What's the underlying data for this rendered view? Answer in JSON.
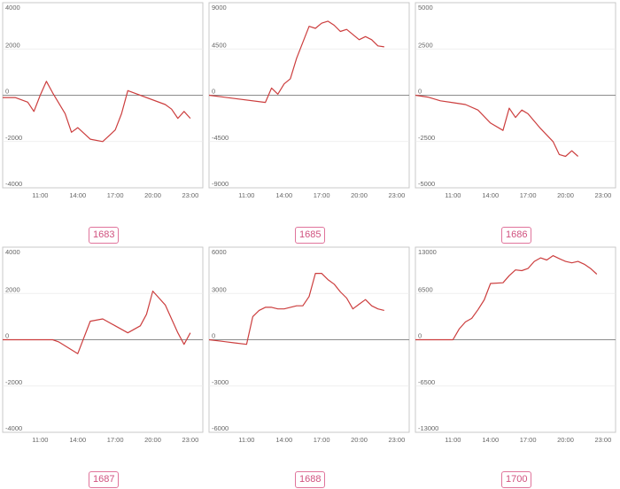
{
  "colors": {
    "line": "#cc3e3e",
    "grid": "#ebebeb",
    "zero": "#8c8c8c",
    "frame": "#c9c9c9",
    "badge": "#d0527f"
  },
  "chart_data": [
    {
      "type": "line",
      "badge": "1683",
      "yticks": [
        "4000",
        "2000",
        "0",
        "-2000",
        "-4000"
      ],
      "ylim": [
        -4000,
        4000
      ],
      "xticks": [
        "11:00",
        "14:00",
        "17:00",
        "20:00",
        "23:00"
      ],
      "x": [
        "08:00",
        "09:00",
        "10:00",
        "10:30",
        "11:00",
        "11:30",
        "12:00",
        "13:00",
        "13:30",
        "14:00",
        "15:00",
        "16:00",
        "17:00",
        "17:30",
        "18:00",
        "21:00",
        "21:30",
        "22:00",
        "22:30",
        "23:00"
      ],
      "y": [
        -100,
        -100,
        -300,
        -700,
        0,
        600,
        100,
        -800,
        -1600,
        -1400,
        -1900,
        -2000,
        -1500,
        -800,
        200,
        -400,
        -600,
        -1000,
        -700,
        -1000
      ]
    },
    {
      "type": "line",
      "badge": "1685",
      "yticks": [
        "9000",
        "4500",
        "0",
        "-4500",
        "-9000"
      ],
      "ylim": [
        -9000,
        9000
      ],
      "xticks": [
        "11:00",
        "14:00",
        "17:00",
        "20:00",
        "23:00"
      ],
      "x": [
        "08:00",
        "12:30",
        "13:00",
        "13:30",
        "14:00",
        "14:30",
        "15:00",
        "16:00",
        "16:30",
        "17:00",
        "17:30",
        "18:00",
        "18:30",
        "19:00",
        "20:00",
        "20:30",
        "21:00",
        "21:30",
        "22:00"
      ],
      "y": [
        0,
        -700,
        700,
        100,
        1100,
        1600,
        3600,
        6700,
        6500,
        7000,
        7200,
        6800,
        6200,
        6400,
        5400,
        5700,
        5400,
        4800,
        4700
      ]
    },
    {
      "type": "line",
      "badge": "1686",
      "yticks": [
        "5000",
        "2500",
        "0",
        "-2500",
        "-5000"
      ],
      "ylim": [
        -5000,
        5000
      ],
      "xticks": [
        "11:00",
        "14:00",
        "17:00",
        "20:00",
        "23:00"
      ],
      "x": [
        "08:00",
        "09:00",
        "10:00",
        "11:00",
        "12:00",
        "13:00",
        "14:00",
        "15:00",
        "15:30",
        "16:00",
        "16:30",
        "17:00",
        "18:00",
        "19:00",
        "19:30",
        "20:00",
        "20:30",
        "21:00"
      ],
      "y": [
        0,
        -100,
        -300,
        -400,
        -500,
        -800,
        -1500,
        -1900,
        -700,
        -1200,
        -800,
        -1000,
        -1800,
        -2500,
        -3200,
        -3300,
        -3000,
        -3300
      ]
    },
    {
      "type": "line",
      "badge": "1687",
      "yticks": [
        "4000",
        "2000",
        "0",
        "-2000",
        "-4000"
      ],
      "ylim": [
        -4000,
        4000
      ],
      "xticks": [
        "11:00",
        "14:00",
        "17:00",
        "20:00",
        "23:00"
      ],
      "x": [
        "08:00",
        "10:00",
        "11:00",
        "11:30",
        "12:00",
        "12:30",
        "14:00",
        "15:00",
        "16:00",
        "17:00",
        "18:00",
        "19:00",
        "19:30",
        "20:00",
        "20:30",
        "21:00",
        "21:30",
        "22:00",
        "22:30",
        "23:00"
      ],
      "y": [
        0,
        0,
        0,
        0,
        0,
        -100,
        -600,
        800,
        900,
        600,
        300,
        600,
        1100,
        2100,
        1800,
        1500,
        900,
        300,
        -200,
        300
      ]
    },
    {
      "type": "line",
      "badge": "1688",
      "yticks": [
        "6000",
        "3000",
        "0",
        "-3000",
        "-6000"
      ],
      "ylim": [
        -6000,
        6000
      ],
      "xticks": [
        "11:00",
        "14:00",
        "17:00",
        "20:00",
        "23:00"
      ],
      "x": [
        "08:00",
        "09:00",
        "10:00",
        "11:00",
        "11:30",
        "12:00",
        "12:30",
        "13:00",
        "13:30",
        "14:00",
        "15:00",
        "15:30",
        "16:00",
        "16:30",
        "17:00",
        "17:30",
        "18:00",
        "18:30",
        "19:00",
        "19:30",
        "20:00",
        "20:30",
        "21:00",
        "21:30",
        "22:00"
      ],
      "y": [
        0,
        -100,
        -200,
        -300,
        1500,
        1900,
        2100,
        2100,
        2000,
        2000,
        2200,
        2200,
        2800,
        4300,
        4300,
        3900,
        3600,
        3100,
        2700,
        2000,
        2300,
        2600,
        2200,
        2000,
        1900
      ]
    },
    {
      "type": "line",
      "badge": "1700",
      "yticks": [
        "13000",
        "6500",
        "0",
        "-6500",
        "-13000"
      ],
      "ylim": [
        -13000,
        13000
      ],
      "xticks": [
        "11:00",
        "14:00",
        "17:00",
        "20:00",
        "23:00"
      ],
      "x": [
        "08:00",
        "09:00",
        "10:00",
        "10:30",
        "11:00",
        "11:30",
        "12:00",
        "12:30",
        "13:00",
        "13:30",
        "14:00",
        "15:00",
        "15:30",
        "16:00",
        "16:30",
        "17:00",
        "17:30",
        "18:00",
        "18:30",
        "19:00",
        "19:30",
        "20:00",
        "20:30",
        "21:00",
        "21:30",
        "22:00",
        "22:30"
      ],
      "y": [
        0,
        0,
        0,
        0,
        0,
        1500,
        2500,
        3000,
        4200,
        5600,
        7900,
        8000,
        9000,
        9800,
        9700,
        10000,
        11000,
        11500,
        11200,
        11800,
        11400,
        11000,
        10800,
        11000,
        10600,
        10000,
        9200
      ]
    }
  ]
}
